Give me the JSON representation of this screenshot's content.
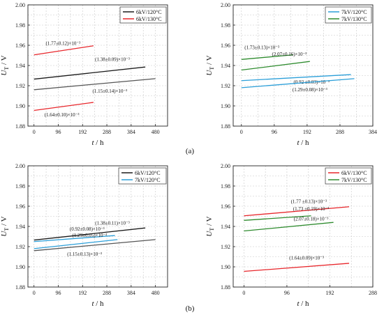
{
  "figure_labels": [
    "(a)",
    "(b)"
  ],
  "chart_data": [
    {
      "type": "line",
      "ylabel": "U_T / V",
      "xlabel": "t / h",
      "xlim": [
        -24,
        528
      ],
      "ylim": [
        1.88,
        2.0
      ],
      "xticks": [
        "0",
        "96",
        "192",
        "288",
        "384",
        "480"
      ],
      "yticks": [
        "1.88",
        "1.90",
        "1.92",
        "1.94",
        "1.96",
        "1.98",
        "2.00"
      ],
      "grid": true,
      "legend": "top-right",
      "legend_entries": [
        {
          "label": "6kV/120°C",
          "color": "#1a1a1a"
        },
        {
          "label": "6kV/130°C",
          "color": "#e8262b"
        }
      ],
      "series": [
        {
          "x": [
            0,
            440
          ],
          "y": [
            1.9265,
            1.9385
          ],
          "color": "#1a1a1a",
          "annotation": "(1.38±0.09)×10⁻³"
        },
        {
          "x": [
            0,
            480
          ],
          "y": [
            1.916,
            1.927
          ],
          "color": "#555555",
          "annotation": "(1.15±0.14)×10⁻³"
        },
        {
          "x": [
            0,
            235
          ],
          "y": [
            1.9505,
            1.9595
          ],
          "color": "#e8262b",
          "annotation": "(1.77±0.12)×10⁻³"
        },
        {
          "x": [
            0,
            235
          ],
          "y": [
            1.8955,
            1.9035
          ],
          "color": "#e8262b",
          "annotation": "(1.64±0.10)×10⁻³"
        }
      ]
    },
    {
      "type": "line",
      "ylabel": "U_T / V",
      "xlabel": "t / h",
      "xlim": [
        -24,
        384
      ],
      "ylim": [
        1.88,
        2.0
      ],
      "xticks": [
        "0",
        "96",
        "192",
        "288",
        "384"
      ],
      "yticks": [
        "1.88",
        "1.90",
        "1.92",
        "1.94",
        "1.96",
        "1.98",
        "2.00"
      ],
      "grid": true,
      "legend": "top-right",
      "legend_entries": [
        {
          "label": "7kV/120°C",
          "color": "#2b9fd9"
        },
        {
          "label": "7kV/130°C",
          "color": "#2e8b2e"
        }
      ],
      "series": [
        {
          "x": [
            0,
            150
          ],
          "y": [
            1.946,
            1.9505
          ],
          "color": "#2e8b2e",
          "annotation": "(1.73±0.13)×10⁻³"
        },
        {
          "x": [
            0,
            200
          ],
          "y": [
            1.9355,
            1.944
          ],
          "color": "#2e8b2e",
          "annotation": "(2.07±0.16)×10⁻³"
        },
        {
          "x": [
            0,
            320
          ],
          "y": [
            1.925,
            1.931
          ],
          "color": "#2b9fd9",
          "annotation": "(0.92 ±0.03)×10⁻³"
        },
        {
          "x": [
            0,
            330
          ],
          "y": [
            1.918,
            1.927
          ],
          "color": "#2b9fd9",
          "annotation": "(1.29±0.08)×10⁻³"
        }
      ]
    },
    {
      "type": "line",
      "ylabel": "U_T / V",
      "xlabel": "t / h",
      "xlim": [
        -24,
        528
      ],
      "ylim": [
        1.88,
        2.0
      ],
      "xticks": [
        "0",
        "96",
        "192",
        "288",
        "384",
        "480"
      ],
      "yticks": [
        "1.88",
        "1.90",
        "1.92",
        "1.94",
        "1.96",
        "1.98",
        "2.00"
      ],
      "grid": true,
      "legend": "top-right",
      "legend_entries": [
        {
          "label": "6kV/120°C",
          "color": "#1a1a1a"
        },
        {
          "label": "7kV/120°C",
          "color": "#2b9fd9"
        }
      ],
      "series": [
        {
          "x": [
            0,
            440
          ],
          "y": [
            1.9265,
            1.9385
          ],
          "color": "#1a1a1a",
          "annotation": "(1.38±0.11)×10⁻³"
        },
        {
          "x": [
            0,
            480
          ],
          "y": [
            1.916,
            1.927
          ],
          "color": "#555555",
          "annotation": "(1.15±0.13)×10⁻³"
        },
        {
          "x": [
            0,
            320
          ],
          "y": [
            1.925,
            1.931
          ],
          "color": "#2b9fd9",
          "annotation": "(0.92±0.08)×10⁻³"
        },
        {
          "x": [
            0,
            330
          ],
          "y": [
            1.918,
            1.927
          ],
          "color": "#2b9fd9",
          "annotation": "(1.29±0.05)×10⁻³"
        }
      ]
    },
    {
      "type": "line",
      "ylabel": "U_T / V",
      "xlabel": "t / h",
      "xlim": [
        -24,
        288
      ],
      "ylim": [
        1.88,
        2.0
      ],
      "xticks": [
        "0",
        "96",
        "192",
        "288"
      ],
      "yticks": [
        "1.88",
        "1.90",
        "1.92",
        "1.94",
        "1.96",
        "1.98",
        "2.00"
      ],
      "grid": true,
      "legend": "top-right",
      "legend_entries": [
        {
          "label": "6kV/130°C",
          "color": "#e8262b"
        },
        {
          "label": "7kV/130°C",
          "color": "#2e8b2e"
        }
      ],
      "series": [
        {
          "x": [
            0,
            235
          ],
          "y": [
            1.9505,
            1.9595
          ],
          "color": "#e8262b",
          "annotation": "(1.77 ±0.13)×10⁻³"
        },
        {
          "x": [
            0,
            150
          ],
          "y": [
            1.946,
            1.9505
          ],
          "color": "#2e8b2e",
          "annotation": "(1.73 ±0.19)×10⁻³"
        },
        {
          "x": [
            0,
            200
          ],
          "y": [
            1.9355,
            1.944
          ],
          "color": "#2e8b2e",
          "annotation": "(2.07±0.18)×10⁻³"
        },
        {
          "x": [
            0,
            235
          ],
          "y": [
            1.8955,
            1.9035
          ],
          "color": "#e8262b",
          "annotation": "(1.64±0.09)×10⁻³"
        }
      ]
    }
  ]
}
